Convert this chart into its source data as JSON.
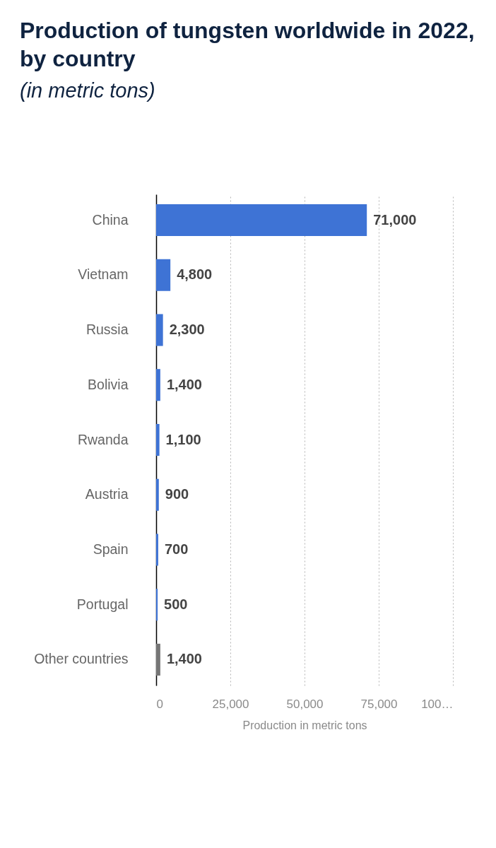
{
  "chart_data": {
    "type": "bar",
    "orientation": "horizontal",
    "title": "Production of tungsten worldwide in 2022, by country",
    "subtitle": "(in metric tons)",
    "xlabel": "Production in metric tons",
    "categories": [
      "China",
      "Vietnam",
      "Russia",
      "Bolivia",
      "Rwanda",
      "Austria",
      "Spain",
      "Portugal",
      "Other countries"
    ],
    "values": [
      71000,
      4800,
      2300,
      1400,
      1100,
      900,
      700,
      500,
      1400
    ],
    "value_labels": [
      "71,000",
      "4,800",
      "2,300",
      "1,400",
      "1,100",
      "900",
      "700",
      "500",
      "1,400"
    ],
    "colors": [
      "#3e73d5",
      "#3e73d5",
      "#3e73d5",
      "#3e73d5",
      "#3e73d5",
      "#3e73d5",
      "#3e73d5",
      "#3e73d5",
      "#767676"
    ],
    "xlim": [
      0,
      100000
    ],
    "xticks": [
      0,
      {
        "value": 25000,
        "label": "25,000"
      },
      {
        "value": 50000,
        "label": "50,000"
      },
      {
        "value": 75000,
        "label": "75,000"
      },
      {
        "value": 100000,
        "label": "100…"
      }
    ],
    "grid": "x"
  }
}
